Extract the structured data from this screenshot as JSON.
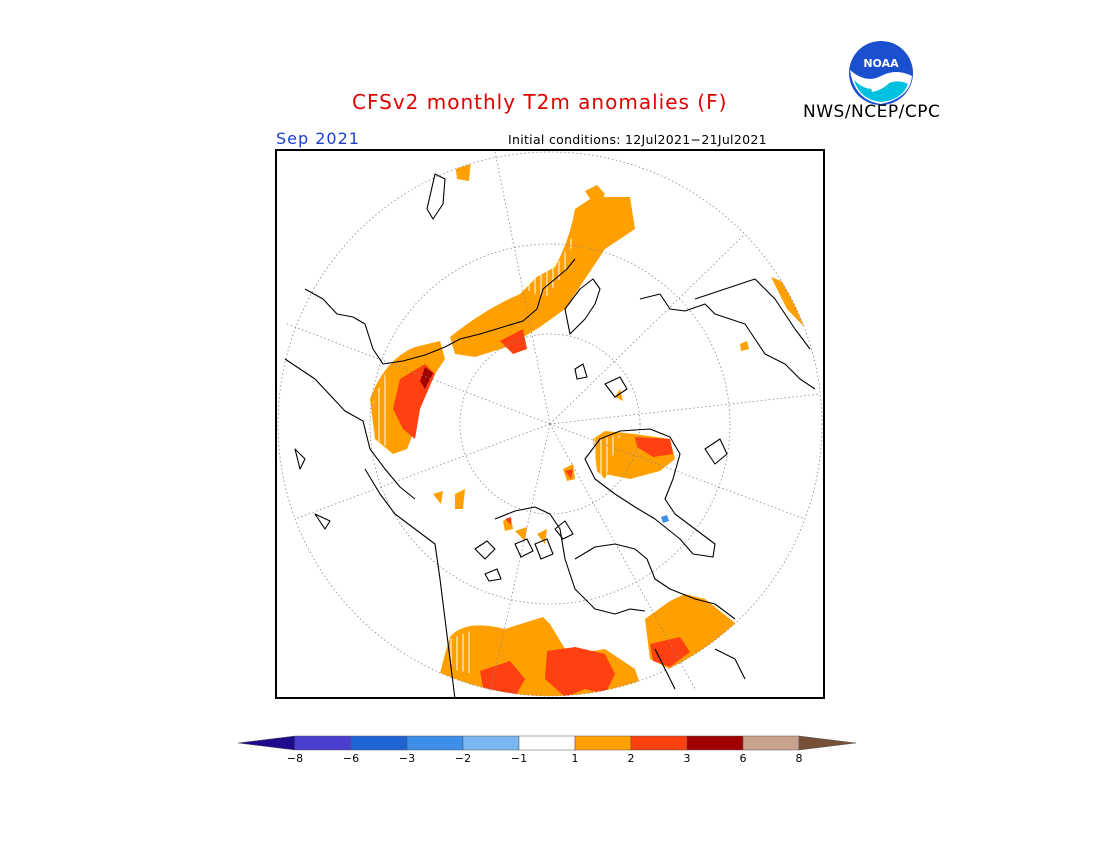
{
  "title": "CFSv2 monthly T2m anomalies (F)",
  "agency": "NWS/NCEP/CPC",
  "logo_text": "NOAA",
  "month": "Sep 2021",
  "initial_conditions": "Initial conditions: 12Jul2021−21Jul2021",
  "colorbar": {
    "ticks": [
      "−8",
      "−6",
      "−3",
      "−2",
      "−1",
      "1",
      "2",
      "3",
      "6",
      "8"
    ],
    "bins": [
      {
        "from": null,
        "to": -8,
        "color": "#1e0a8c"
      },
      {
        "from": -8,
        "to": -6,
        "color": "#4a3ed0"
      },
      {
        "from": -6,
        "to": -3,
        "color": "#1f64d2"
      },
      {
        "from": -3,
        "to": -2,
        "color": "#3c8ee8"
      },
      {
        "from": -2,
        "to": -1,
        "color": "#7ab6f0"
      },
      {
        "from": -1,
        "to": 1,
        "color": "#ffffff"
      },
      {
        "from": 1,
        "to": 2,
        "color": "#ffa000"
      },
      {
        "from": 2,
        "to": 3,
        "color": "#ff4010"
      },
      {
        "from": 3,
        "to": 6,
        "color": "#a00000"
      },
      {
        "from": 6,
        "to": 8,
        "color": "#c8a08c"
      },
      {
        "from": 8,
        "to": null,
        "color": "#785038"
      }
    ]
  },
  "map": {
    "projection": "north-polar-stereographic",
    "coastline_color": "#000000",
    "graticule_color": "#888888"
  }
}
